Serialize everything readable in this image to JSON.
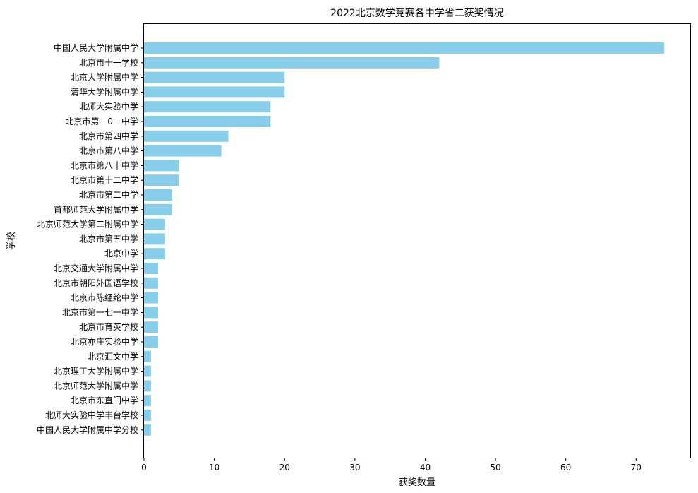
{
  "chart_data": {
    "type": "bar",
    "orientation": "horizontal",
    "title": "2022北京数学竞赛各中学省二获奖情况",
    "xlabel": "获奖数量",
    "ylabel": "学校",
    "xlim": [
      0,
      77.7
    ],
    "xticks": [
      0,
      10,
      20,
      30,
      40,
      50,
      60,
      70
    ],
    "grid": false,
    "bar_color": "#87CEEB",
    "categories": [
      "中国人民大学附属中学",
      "北京市十一学校",
      "北京大学附属中学",
      "清华大学附属中学",
      "北师大实验中学",
      "北京市第一0一中学",
      "北京市第四中学",
      "北京市第八中学",
      "北京市第八十中学",
      "北京市第十二中学",
      "北京市第二中学",
      "首都师范大学附属中学",
      "北京师范大学第二附属中学",
      "北京市第五中学",
      "北京中学",
      "北京交通大学附属中学",
      "北京市朝阳外国语学校",
      "北京市陈经纶中学",
      "北京市第一七一中学",
      "北京市育英学校",
      "北京亦庄实验中学",
      "北京汇文中学",
      "北京理工大学附属中学",
      "北京师范大学附属中学",
      "北京市东直门中学",
      "北师大实验中学丰台学校",
      "中国人民大学附属中学分校"
    ],
    "values": [
      74,
      42,
      20,
      20,
      18,
      18,
      12,
      11,
      5,
      5,
      4,
      4,
      3,
      3,
      3,
      2,
      2,
      2,
      2,
      2,
      2,
      1,
      1,
      1,
      1,
      1,
      1
    ]
  }
}
